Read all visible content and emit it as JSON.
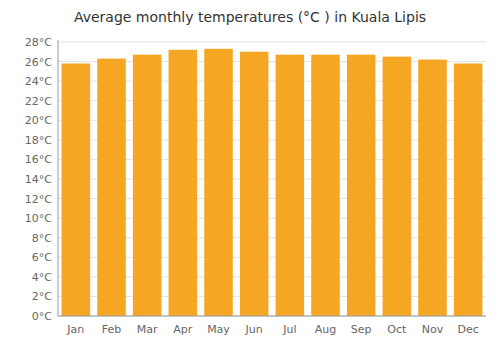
{
  "chart_data": {
    "type": "bar",
    "title": "Average monthly temperatures (°C ) in Kuala Lipis",
    "categories": [
      "Jan",
      "Feb",
      "Mar",
      "Apr",
      "May",
      "Jun",
      "Jul",
      "Aug",
      "Sep",
      "Oct",
      "Nov",
      "Dec"
    ],
    "values": [
      25.8,
      26.3,
      26.7,
      27.2,
      27.3,
      27.0,
      26.7,
      26.7,
      26.7,
      26.5,
      26.2,
      25.8
    ],
    "color": "#F5A623",
    "ylim": [
      0,
      28.2
    ],
    "yticks": [
      {
        "value": 0,
        "label": "0°C"
      },
      {
        "value": 2,
        "label": "2°C"
      },
      {
        "value": 4,
        "label": "4°C"
      },
      {
        "value": 6,
        "label": "6°C"
      },
      {
        "value": 8,
        "label": "8°C"
      },
      {
        "value": 10,
        "label": "10°C"
      },
      {
        "value": 12,
        "label": "12°C"
      },
      {
        "value": 14,
        "label": "14°C"
      },
      {
        "value": 16,
        "label": "16°C"
      },
      {
        "value": 18,
        "label": "18°C"
      },
      {
        "value": 20,
        "label": "20°C"
      },
      {
        "value": 22,
        "label": "22°C"
      },
      {
        "value": 24,
        "label": "24°C"
      },
      {
        "value": 26,
        "label": "26°C"
      },
      {
        "value": 28,
        "label": "28°C"
      }
    ],
    "grid": true
  }
}
